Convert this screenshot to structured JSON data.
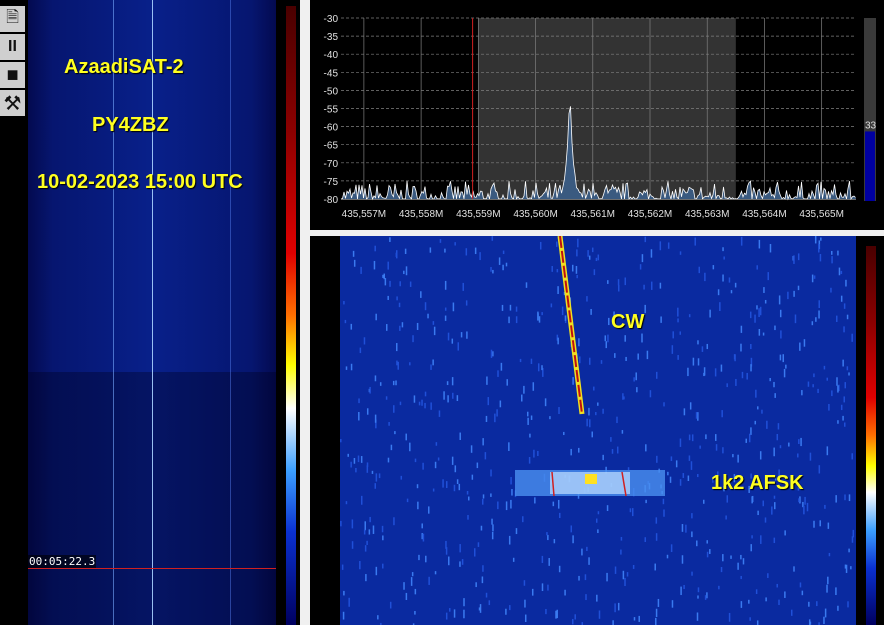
{
  "toolbar": {
    "buttons": [
      {
        "name": "log",
        "icon": "document-icon",
        "glyph": "🗎"
      },
      {
        "name": "pause",
        "icon": "pause-icon",
        "glyph": "II"
      },
      {
        "name": "stop",
        "icon": "stop-icon",
        "glyph": "■"
      },
      {
        "name": "settings",
        "icon": "tools-icon",
        "glyph": "⚒"
      }
    ]
  },
  "left_waterfall": {
    "satellite": "AzaadiSAT-2",
    "callsign": "PY4ZBZ",
    "datetime": "10-02-2023 15:00 UTC",
    "elapsed_time": "00:05:22.3"
  },
  "spectrum": {
    "y_ticks": [
      "-30",
      "-35",
      "-40",
      "-45",
      "-50",
      "-55",
      "-60",
      "-65",
      "-70",
      "-75",
      "-80"
    ],
    "x_ticks": [
      "435,557M",
      "435,558M",
      "435,559M",
      "435,560M",
      "435,561M",
      "435,562M",
      "435,563M",
      "435,564M",
      "435,565M"
    ],
    "ylim": [
      -80,
      -30
    ],
    "xlim_mhz": [
      435.5566,
      435.5656
    ],
    "noise_floor_db": -80,
    "peak": {
      "freq_mhz": 435.5606,
      "level_db": -49
    },
    "passband_mhz": [
      435.559,
      435.5635
    ],
    "marker_mhz": 435.5589,
    "level_meter_value": "33",
    "level_meter_fraction": 0.38,
    "colors": {
      "grid": "#808080",
      "trace": "#ffffff",
      "fill": "#3a5a80",
      "passband": "#333333",
      "marker": "#d02020",
      "meter": "#0000a0"
    }
  },
  "right_waterfall": {
    "annotations": {
      "cw": "CW",
      "afsk": "1k2 AFSK"
    }
  },
  "colors": {
    "overlay_text": "#ffff20",
    "waterfall_bg": "#0a2aa0"
  }
}
